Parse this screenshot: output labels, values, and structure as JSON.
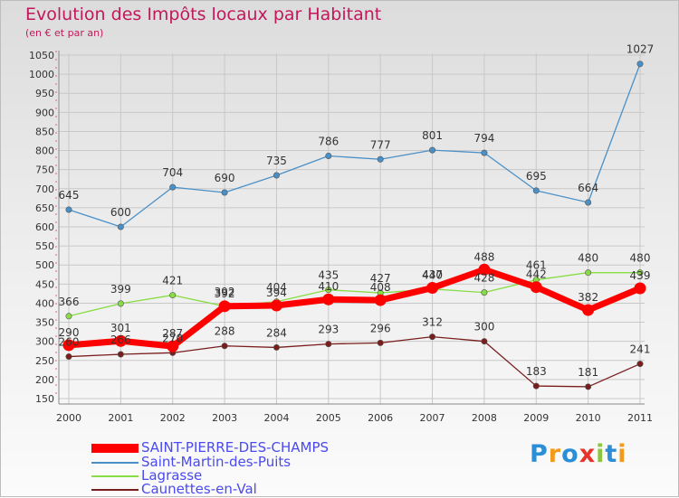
{
  "header": {
    "title": "Evolution des Impôts locaux par Habitant",
    "subtitle": "(en € et par an)"
  },
  "chart_data": {
    "type": "line",
    "title": "Evolution des Impôts locaux par Habitant",
    "subtitle": "(en € et par an)",
    "xlabel": "",
    "ylabel": "",
    "categories": [
      "2000",
      "2001",
      "2002",
      "2003",
      "2004",
      "2005",
      "2006",
      "2007",
      "2008",
      "2009",
      "2010",
      "2011"
    ],
    "ylim": [
      150,
      1050
    ],
    "yticks": [
      150,
      200,
      250,
      300,
      350,
      400,
      450,
      500,
      550,
      600,
      650,
      700,
      750,
      800,
      850,
      900,
      950,
      1000,
      1050
    ],
    "grid": true,
    "legend_position": "bottom-left",
    "series": [
      {
        "name": "SAINT-PIERRE-DES-CHAMPS",
        "color": "#ff0000",
        "values": [
          290,
          301,
          287,
          392,
          394,
          410,
          408,
          440,
          488,
          442,
          382,
          439
        ]
      },
      {
        "name": "Saint-Martin-des-Puits",
        "color": "#4a90c8",
        "values": [
          645,
          600,
          704,
          690,
          735,
          786,
          777,
          801,
          794,
          695,
          664,
          1027
        ]
      },
      {
        "name": "Lagrasse",
        "color": "#88dd44",
        "values": [
          366,
          399,
          421,
          392,
          404,
          435,
          427,
          437,
          428,
          461,
          480,
          480
        ]
      },
      {
        "name": "Caunettes-en-Val",
        "color": "#7a1d1d",
        "values": [
          260,
          266,
          270,
          288,
          284,
          293,
          296,
          312,
          300,
          183,
          181,
          241
        ]
      }
    ]
  },
  "logo": {
    "letters": [
      "P",
      "r",
      "o",
      "x",
      "i",
      "t",
      "i"
    ],
    "colors": [
      "#2a8fd6",
      "#f29a1a",
      "#2a8fd6",
      "#e8332b",
      "#8cc63f",
      "#2a8fd6",
      "#f29a1a"
    ]
  }
}
